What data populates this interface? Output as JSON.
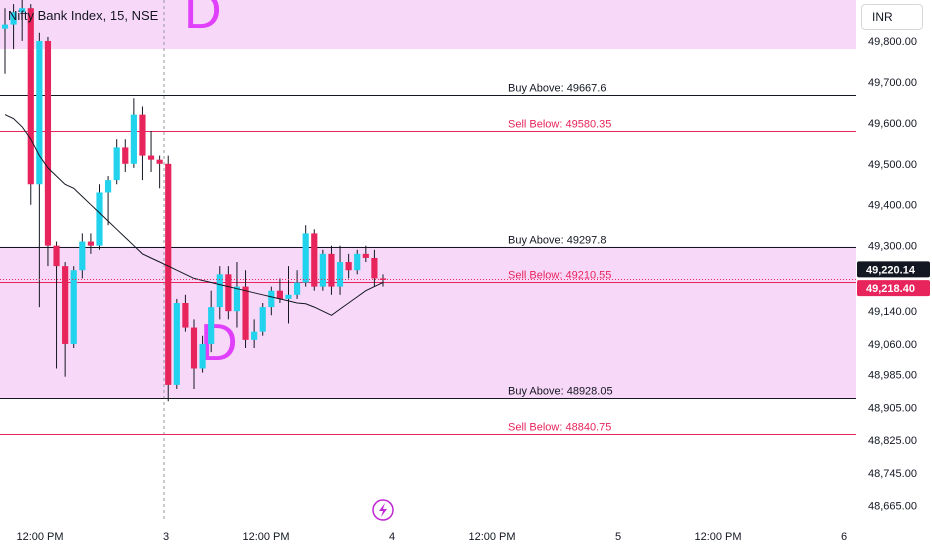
{
  "header": {
    "symbol_title": "Nifty Bank Index, 15, NSE",
    "currency": "INR"
  },
  "colors": {
    "up": "#22d3ee",
    "down": "#e8245c",
    "zone_fill": "#f8d8f8",
    "zone_letter": "#e040fb",
    "buy_line": "#131722",
    "sell_line": "#e8245c",
    "ma_line": "#131722",
    "last_price_bg": "#131722",
    "current_price_bg": "#e8245c",
    "lightning_icon": "#c026d3"
  },
  "chart_data": {
    "type": "candlestick",
    "y_axis": {
      "range": [
        48630,
        49900
      ],
      "ticks": [
        "49,800.00",
        "49,700.00",
        "49,600.00",
        "49,500.00",
        "49,400.00",
        "49,300.00",
        "49,140.00",
        "49,060.00",
        "48,985.00",
        "48,905.00",
        "48,825.00",
        "48,745.00",
        "48,665.00"
      ]
    },
    "x_axis": {
      "ticks": [
        "12:00 PM",
        "3",
        "12:00 PM",
        "4",
        "12:00 PM",
        "5",
        "12:00 PM",
        "6"
      ]
    },
    "price_labels": {
      "last": "49,220.14",
      "current": "49,218.40"
    },
    "levels": [
      {
        "label": "Buy Above: 49667.6",
        "price": 49667.6,
        "kind": "buy"
      },
      {
        "label": "Sell Below: 49580.35",
        "price": 49580.35,
        "kind": "sell"
      },
      {
        "label": "Buy Above: 49297.8",
        "price": 49297.8,
        "kind": "buy"
      },
      {
        "label": "Sell Below: 49210.55",
        "price": 49210.55,
        "kind": "sell"
      },
      {
        "label": "Buy Above: 48928.05",
        "price": 48928.05,
        "kind": "buy"
      },
      {
        "label": "Sell Below: 48840.75",
        "price": 48840.75,
        "kind": "sell"
      }
    ],
    "zones": [
      {
        "label": "D",
        "top": 49900,
        "bottom": 49780
      },
      {
        "label": "D",
        "top": 49297.8,
        "bottom": 48928.05
      }
    ],
    "candles": [
      {
        "o": 49830,
        "h": 49880,
        "l": 49720,
        "c": 49840
      },
      {
        "o": 49840,
        "h": 49890,
        "l": 49780,
        "c": 49870
      },
      {
        "o": 49870,
        "h": 49900,
        "l": 49800,
        "c": 49880
      },
      {
        "o": 49880,
        "h": 49890,
        "l": 49400,
        "c": 49450
      },
      {
        "o": 49450,
        "h": 49820,
        "l": 49150,
        "c": 49800
      },
      {
        "o": 49800,
        "h": 49810,
        "l": 49250,
        "c": 49300
      },
      {
        "o": 49300,
        "h": 49310,
        "l": 49000,
        "c": 49250
      },
      {
        "o": 49250,
        "h": 49260,
        "l": 48980,
        "c": 49060
      },
      {
        "o": 49060,
        "h": 49250,
        "l": 49050,
        "c": 49240
      },
      {
        "o": 49240,
        "h": 49330,
        "l": 49220,
        "c": 49310
      },
      {
        "o": 49310,
        "h": 49330,
        "l": 49280,
        "c": 49300
      },
      {
        "o": 49300,
        "h": 49450,
        "l": 49290,
        "c": 49430
      },
      {
        "o": 49430,
        "h": 49470,
        "l": 49350,
        "c": 49460
      },
      {
        "o": 49460,
        "h": 49560,
        "l": 49450,
        "c": 49540
      },
      {
        "o": 49540,
        "h": 49560,
        "l": 49480,
        "c": 49500
      },
      {
        "o": 49500,
        "h": 49660,
        "l": 49490,
        "c": 49620
      },
      {
        "o": 49620,
        "h": 49640,
        "l": 49460,
        "c": 49520
      },
      {
        "o": 49520,
        "h": 49580,
        "l": 49480,
        "c": 49510
      },
      {
        "o": 49510,
        "h": 49520,
        "l": 49440,
        "c": 49500
      },
      {
        "o": 49500,
        "h": 49520,
        "l": 48920,
        "c": 48960
      },
      {
        "o": 48960,
        "h": 49170,
        "l": 48950,
        "c": 49160
      },
      {
        "o": 49160,
        "h": 49180,
        "l": 49090,
        "c": 49100
      },
      {
        "o": 49100,
        "h": 49120,
        "l": 48950,
        "c": 49000
      },
      {
        "o": 49000,
        "h": 49080,
        "l": 48990,
        "c": 49060
      },
      {
        "o": 49060,
        "h": 49190,
        "l": 49040,
        "c": 49150
      },
      {
        "o": 49150,
        "h": 49250,
        "l": 49120,
        "c": 49230
      },
      {
        "o": 49230,
        "h": 49250,
        "l": 49120,
        "c": 49140
      },
      {
        "o": 49140,
        "h": 49260,
        "l": 49100,
        "c": 49200
      },
      {
        "o": 49200,
        "h": 49240,
        "l": 49050,
        "c": 49070
      },
      {
        "o": 49070,
        "h": 49120,
        "l": 49050,
        "c": 49090
      },
      {
        "o": 49090,
        "h": 49160,
        "l": 49080,
        "c": 49150
      },
      {
        "o": 49150,
        "h": 49200,
        "l": 49130,
        "c": 49190
      },
      {
        "o": 49190,
        "h": 49220,
        "l": 49160,
        "c": 49170
      },
      {
        "o": 49170,
        "h": 49250,
        "l": 49110,
        "c": 49180
      },
      {
        "o": 49180,
        "h": 49240,
        "l": 49170,
        "c": 49210
      },
      {
        "o": 49210,
        "h": 49350,
        "l": 49200,
        "c": 49330
      },
      {
        "o": 49330,
        "h": 49340,
        "l": 49190,
        "c": 49200
      },
      {
        "o": 49200,
        "h": 49290,
        "l": 49190,
        "c": 49280
      },
      {
        "o": 49280,
        "h": 49300,
        "l": 49180,
        "c": 49200
      },
      {
        "o": 49200,
        "h": 49300,
        "l": 49180,
        "c": 49260
      },
      {
        "o": 49260,
        "h": 49280,
        "l": 49220,
        "c": 49240
      },
      {
        "o": 49240,
        "h": 49290,
        "l": 49230,
        "c": 49280
      },
      {
        "o": 49280,
        "h": 49300,
        "l": 49260,
        "c": 49270
      },
      {
        "o": 49270,
        "h": 49290,
        "l": 49200,
        "c": 49220
      },
      {
        "o": 49220,
        "h": 49230,
        "l": 49200,
        "c": 49218.4
      }
    ],
    "moving_average": [
      49620,
      49610,
      49590,
      49560,
      49520,
      49490,
      49470,
      49450,
      49440,
      49420,
      49400,
      49380,
      49360,
      49340,
      49320,
      49300,
      49280,
      49270,
      49260,
      49250,
      49240,
      49230,
      49220,
      49215,
      49210,
      49205,
      49200,
      49195,
      49190,
      49185,
      49180,
      49175,
      49170,
      49165,
      49160,
      49158,
      49150,
      49140,
      49130,
      49145,
      49160,
      49175,
      49190,
      49200,
      49210
    ]
  }
}
